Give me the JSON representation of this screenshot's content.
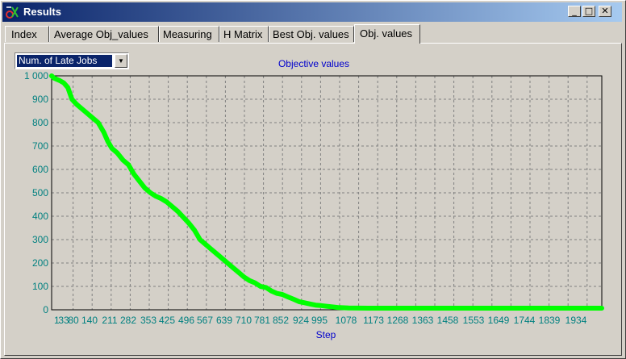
{
  "window": {
    "title": "Results",
    "controls": {
      "minimize": "_",
      "maximize": "□",
      "close": "✕"
    }
  },
  "tabs": [
    {
      "label": "Index",
      "active": false
    },
    {
      "label": "Average Obj_values",
      "active": false
    },
    {
      "label": "Measuring",
      "active": false
    },
    {
      "label": "H Matrix",
      "active": false
    },
    {
      "label": "Best Obj. values",
      "active": false
    },
    {
      "label": "Obj. values",
      "active": true
    }
  ],
  "selector": {
    "value": "Num. of Late Jobs",
    "arrow_icon": "dropdown-arrow-icon"
  },
  "colors": {
    "title_bar_start": "#0a246a",
    "title_bar_end": "#a6caf0",
    "series": "#00ff00",
    "axis_text": "#008080",
    "title_text": "#0000cc"
  },
  "chart_data": {
    "type": "line",
    "title": "Objective values",
    "xlabel": "Step",
    "ylabel": "",
    "ylim": [
      0,
      1000
    ],
    "xlim": [
      1,
      2000
    ],
    "grid": true,
    "y_ticks": [
      "0",
      "100",
      "200",
      "300",
      "400",
      "500",
      "600",
      "700",
      "800",
      "900",
      "1 000"
    ],
    "x_ticks": [
      "1",
      "33",
      "80",
      "140",
      "211",
      "282",
      "353",
      "425",
      "496",
      "567",
      "639",
      "710",
      "781",
      "852",
      "924",
      "995",
      "1078",
      "1173",
      "1268",
      "1363",
      "1458",
      "1553",
      "1649",
      "1744",
      "1839",
      "1934"
    ],
    "series": [
      {
        "points": [
          [
            1,
            1000
          ],
          [
            10,
            990
          ],
          [
            20,
            985
          ],
          [
            30,
            980
          ],
          [
            45,
            970
          ],
          [
            60,
            950
          ],
          [
            75,
            900
          ],
          [
            90,
            880
          ],
          [
            110,
            860
          ],
          [
            130,
            840
          ],
          [
            150,
            820
          ],
          [
            170,
            800
          ],
          [
            190,
            760
          ],
          [
            205,
            720
          ],
          [
            220,
            690
          ],
          [
            240,
            670
          ],
          [
            260,
            640
          ],
          [
            280,
            620
          ],
          [
            300,
            580
          ],
          [
            320,
            550
          ],
          [
            340,
            520
          ],
          [
            360,
            500
          ],
          [
            380,
            485
          ],
          [
            400,
            475
          ],
          [
            420,
            460
          ],
          [
            440,
            440
          ],
          [
            460,
            420
          ],
          [
            480,
            395
          ],
          [
            500,
            370
          ],
          [
            520,
            340
          ],
          [
            540,
            300
          ],
          [
            560,
            280
          ],
          [
            580,
            260
          ],
          [
            600,
            240
          ],
          [
            620,
            220
          ],
          [
            640,
            200
          ],
          [
            660,
            180
          ],
          [
            680,
            160
          ],
          [
            700,
            140
          ],
          [
            720,
            125
          ],
          [
            740,
            115
          ],
          [
            760,
            100
          ],
          [
            780,
            95
          ],
          [
            800,
            80
          ],
          [
            820,
            70
          ],
          [
            840,
            65
          ],
          [
            860,
            55
          ],
          [
            880,
            45
          ],
          [
            900,
            35
          ],
          [
            920,
            30
          ],
          [
            940,
            25
          ],
          [
            960,
            20
          ],
          [
            980,
            18
          ],
          [
            1000,
            15
          ],
          [
            1040,
            10
          ],
          [
            1080,
            8
          ],
          [
            1150,
            7
          ],
          [
            1300,
            7
          ],
          [
            1500,
            7
          ],
          [
            1700,
            7
          ],
          [
            1900,
            7
          ],
          [
            2000,
            7
          ]
        ]
      }
    ]
  }
}
